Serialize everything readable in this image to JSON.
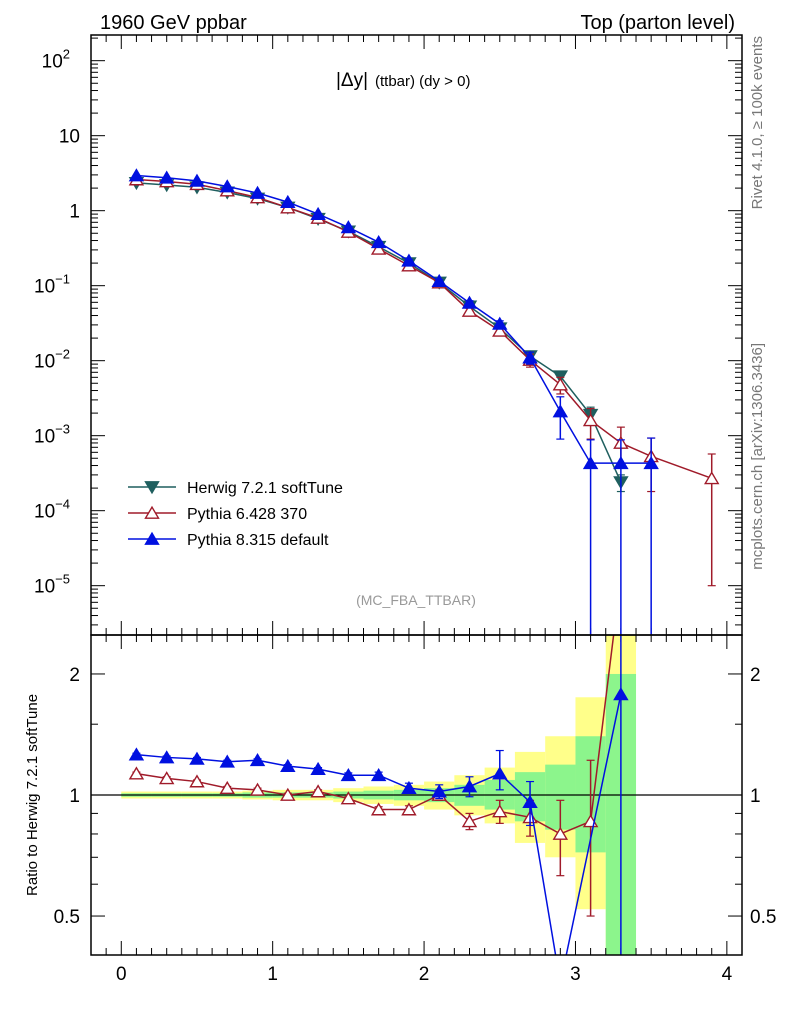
{
  "header": {
    "left": "1960 GeV ppbar",
    "right": "Top (parton level)"
  },
  "side": {
    "rivet": "Rivet 4.1.0, ≥ 100k events",
    "mcplots": "mcplots.cern.ch [arXiv:1306.3436]"
  },
  "colors": {
    "herwig": "#1f5f5f",
    "pythia6": "#a01b2a",
    "pythia8": "#0010e0",
    "band_yellow": "#ffff8a",
    "band_green": "#8cf58c"
  },
  "chart_data": [
    {
      "type": "line",
      "panel": "main",
      "title": "|Δy| (ttbar) (dy > 0)",
      "title_main": "|Δy|",
      "title_sub": "(ttbar) (dy > 0)",
      "watermark": "(MC_FBA_TTBAR)",
      "yscale": "log",
      "xlim": [
        -0.2,
        4.1
      ],
      "ylim": [
        2.2e-06,
        220
      ],
      "yticks": [
        {
          "value": 1e-05,
          "label": "10",
          "exp": "−5"
        },
        {
          "value": 0.0001,
          "label": "10",
          "exp": "−4"
        },
        {
          "value": 0.001,
          "label": "10",
          "exp": "−3"
        },
        {
          "value": 0.01,
          "label": "10",
          "exp": "−2"
        },
        {
          "value": 0.1,
          "label": "10",
          "exp": "−1"
        },
        {
          "value": 1,
          "label": "1",
          "exp": ""
        },
        {
          "value": 10,
          "label": "10",
          "exp": ""
        },
        {
          "value": 100,
          "label": "10",
          "exp": "2"
        }
      ],
      "legend_position": "bottom-left",
      "series": [
        {
          "name": "Herwig 7.2.1 softTune",
          "color_key": "herwig",
          "marker": "triangle-down-filled",
          "x": [
            0.1,
            0.3,
            0.5,
            0.7,
            0.9,
            1.1,
            1.3,
            1.5,
            1.7,
            1.9,
            2.1,
            2.3,
            2.5,
            2.7,
            2.9,
            3.1,
            3.3
          ],
          "y": [
            2.35,
            2.2,
            2.05,
            1.75,
            1.45,
            1.1,
            0.78,
            0.53,
            0.33,
            0.2,
            0.11,
            0.053,
            0.027,
            0.0115,
            0.0062,
            0.0019,
            0.00024
          ],
          "err_lo": [
            0,
            0,
            0,
            0,
            0,
            0,
            0,
            0,
            0,
            0,
            0,
            0,
            0,
            0,
            0,
            0.0004,
            6e-05
          ],
          "err_hi": [
            0,
            0,
            0,
            0,
            0,
            0,
            0,
            0,
            0,
            0,
            0,
            0,
            0,
            0,
            0,
            0.0005,
            6e-05
          ]
        },
        {
          "name": "Pythia 6.428 370",
          "color_key": "pythia6",
          "marker": "triangle-up-open",
          "x": [
            0.1,
            0.3,
            0.5,
            0.7,
            0.9,
            1.1,
            1.3,
            1.5,
            1.7,
            1.9,
            2.1,
            2.3,
            2.5,
            2.7,
            2.9,
            3.1,
            3.3,
            3.5,
            3.9
          ],
          "y": [
            2.6,
            2.45,
            2.25,
            1.85,
            1.5,
            1.1,
            0.8,
            0.52,
            0.31,
            0.185,
            0.11,
            0.046,
            0.025,
            0.0102,
            0.0048,
            0.0016,
            0.0008,
            0.00053,
            0.00027
          ],
          "err_lo": [
            0.05,
            0.05,
            0.05,
            0.04,
            0.03,
            0.03,
            0.02,
            0.02,
            0.01,
            0.008,
            0.005,
            0.004,
            0.003,
            0.002,
            0.0012,
            0.0007,
            0.0004,
            0.00035,
            0.00026
          ],
          "err_hi": [
            0.05,
            0.05,
            0.05,
            0.04,
            0.03,
            0.03,
            0.02,
            0.02,
            0.01,
            0.008,
            0.005,
            0.004,
            0.003,
            0.002,
            0.0012,
            0.0007,
            0.0005,
            0.0004,
            0.0003
          ]
        },
        {
          "name": "Pythia 8.315 default",
          "color_key": "pythia8",
          "marker": "triangle-up-filled",
          "x": [
            0.1,
            0.3,
            0.5,
            0.7,
            0.9,
            1.1,
            1.3,
            1.5,
            1.7,
            1.9,
            2.1,
            2.3,
            2.5,
            2.7,
            2.9,
            3.1,
            3.3,
            3.5
          ],
          "y": [
            2.95,
            2.75,
            2.5,
            2.1,
            1.72,
            1.3,
            0.9,
            0.6,
            0.38,
            0.215,
            0.115,
            0.059,
            0.031,
            0.011,
            0.0021,
            0.00043,
            0.00043,
            0.00043
          ],
          "err_lo": [
            0.05,
            0.05,
            0.05,
            0.04,
            0.03,
            0.03,
            0.02,
            0.02,
            0.01,
            0.008,
            0.005,
            0.004,
            0.003,
            0.002,
            0.0012,
            0.00043,
            0.00043,
            0.00043
          ],
          "err_hi": [
            0.05,
            0.05,
            0.05,
            0.04,
            0.03,
            0.03,
            0.02,
            0.02,
            0.01,
            0.008,
            0.005,
            0.004,
            0.003,
            0.002,
            0.0012,
            0.00045,
            0.00045,
            0.0005
          ]
        }
      ]
    },
    {
      "type": "line",
      "panel": "ratio",
      "ylabel": "Ratio to Herwig 7.2.1 softTune",
      "yscale": "log",
      "xlim": [
        -0.2,
        4.1
      ],
      "ylim": [
        0.4,
        2.5
      ],
      "xticks": [
        0,
        1,
        2,
        3,
        4
      ],
      "yticks": [
        0.5,
        1,
        2
      ],
      "reference_line": 1,
      "bands": [
        {
          "x0": [
            0,
            0.2,
            0.4,
            0.6,
            0.8,
            1.0,
            1.2,
            1.4,
            1.6,
            1.8,
            2.0,
            2.2,
            2.4,
            2.6,
            2.8,
            3.0,
            3.2
          ],
          "x1": [
            0.2,
            0.4,
            0.6,
            0.8,
            1.0,
            1.2,
            1.4,
            1.6,
            1.8,
            2.0,
            2.2,
            2.4,
            2.6,
            2.8,
            3.0,
            3.2,
            3.4
          ],
          "green_lo": [
            0.99,
            0.99,
            0.99,
            0.99,
            0.985,
            0.985,
            0.985,
            0.98,
            0.975,
            0.97,
            0.96,
            0.94,
            0.92,
            0.86,
            0.82,
            0.72,
            0.15
          ],
          "green_hi": [
            1.01,
            1.01,
            1.01,
            1.01,
            1.015,
            1.015,
            1.015,
            1.02,
            1.025,
            1.03,
            1.04,
            1.06,
            1.09,
            1.14,
            1.19,
            1.4,
            2.0
          ],
          "yellow_lo": [
            0.98,
            0.98,
            0.98,
            0.98,
            0.975,
            0.97,
            0.97,
            0.96,
            0.95,
            0.94,
            0.92,
            0.89,
            0.85,
            0.76,
            0.7,
            0.52,
            0.1
          ],
          "yellow_hi": [
            1.02,
            1.02,
            1.02,
            1.02,
            1.025,
            1.03,
            1.03,
            1.04,
            1.05,
            1.06,
            1.08,
            1.12,
            1.17,
            1.28,
            1.4,
            1.75,
            3.0
          ]
        }
      ],
      "series": [
        {
          "name": "Pythia 6.428 370",
          "color_key": "pythia6",
          "marker": "triangle-up-open",
          "x": [
            0.1,
            0.3,
            0.5,
            0.7,
            0.9,
            1.1,
            1.3,
            1.5,
            1.7,
            1.9,
            2.1,
            2.3,
            2.5,
            2.7,
            2.9,
            3.1,
            3.3
          ],
          "y": [
            1.13,
            1.1,
            1.08,
            1.04,
            1.03,
            1.0,
            1.02,
            0.98,
            0.92,
            0.92,
            1.0,
            0.86,
            0.91,
            0.88,
            0.8,
            0.86,
            3.5
          ],
          "err_lo": [
            0.01,
            0.01,
            0.01,
            0.01,
            0.01,
            0.01,
            0.01,
            0.01,
            0.015,
            0.02,
            0.03,
            0.04,
            0.06,
            0.09,
            0.17,
            0.36,
            0
          ],
          "err_hi": [
            0.01,
            0.01,
            0.01,
            0.01,
            0.01,
            0.01,
            0.01,
            0.01,
            0.015,
            0.02,
            0.03,
            0.04,
            0.06,
            0.09,
            0.17,
            0.36,
            0
          ]
        },
        {
          "name": "Pythia 8.315 default",
          "color_key": "pythia8",
          "marker": "triangle-up-filled",
          "x": [
            0.1,
            0.3,
            0.5,
            0.7,
            0.9,
            1.1,
            1.3,
            1.5,
            1.7,
            1.9,
            2.1,
            2.3,
            2.5,
            2.7,
            2.9,
            3.3
          ],
          "y": [
            1.26,
            1.24,
            1.23,
            1.21,
            1.22,
            1.18,
            1.16,
            1.12,
            1.12,
            1.04,
            1.02,
            1.05,
            1.13,
            0.96,
            0.34,
            1.78
          ],
          "err_lo": [
            0.01,
            0.01,
            0.01,
            0.01,
            0.01,
            0.01,
            0.01,
            0.015,
            0.02,
            0.03,
            0.04,
            0.06,
            0.1,
            0.12,
            0,
            1.5
          ],
          "err_hi": [
            0.01,
            0.01,
            0.01,
            0.01,
            0.01,
            0.01,
            0.01,
            0.015,
            0.02,
            0.03,
            0.04,
            0.06,
            0.16,
            0.12,
            0,
            1.5
          ]
        }
      ]
    }
  ]
}
